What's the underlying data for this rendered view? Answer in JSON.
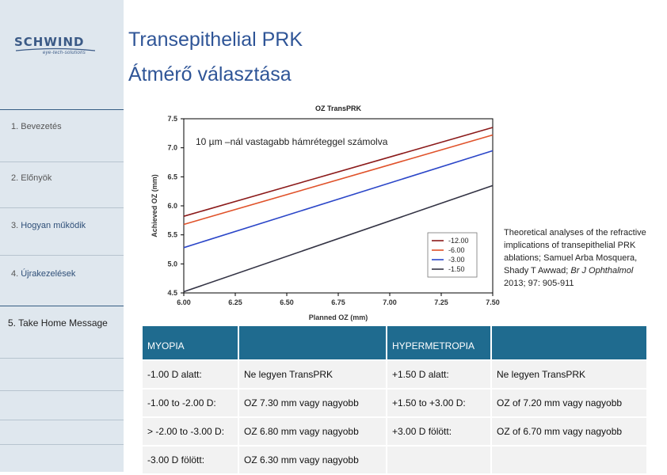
{
  "logo": {
    "brand": "SCHWIND",
    "tagline": "eye-tech-solutions"
  },
  "sidebar": {
    "items": [
      {
        "label": "1. Bevezetés",
        "prefix": "",
        "highlight": ""
      },
      {
        "label": "2. Előnyök",
        "prefix": "",
        "highlight": ""
      },
      {
        "label": "",
        "prefix": "3. ",
        "highlight": "Hogyan működik"
      },
      {
        "label": "",
        "prefix": "4. ",
        "highlight": "Újrakezelések"
      },
      {
        "label": "5. Take Home Message",
        "prefix": "",
        "highlight": ""
      }
    ]
  },
  "title": {
    "line1": "Transepithelial PRK",
    "line2": "Átmérő választása"
  },
  "chart_annotation": "10 µm –nál vastagabb hámréteggel számolva",
  "chart_data": {
    "type": "line",
    "title": "OZ TransPRK",
    "xlabel": "Planned OZ (mm)",
    "ylabel": "Achieved OZ (mm)",
    "xlim": [
      6.0,
      7.5
    ],
    "ylim": [
      4.5,
      7.5
    ],
    "xticks": [
      "6.00",
      "6.25",
      "6.50",
      "6.75",
      "7.00",
      "7.25",
      "7.50"
    ],
    "yticks": [
      "4.5",
      "5.0",
      "5.5",
      "6.0",
      "6.5",
      "7.0",
      "7.5"
    ],
    "legend_position": "bottom-right",
    "series": [
      {
        "name": "-12.00",
        "color": "#8b1a1a",
        "x": [
          6.0,
          7.5
        ],
        "y": [
          5.82,
          7.35
        ]
      },
      {
        "name": "-6.00",
        "color": "#e0522a",
        "x": [
          6.0,
          7.5
        ],
        "y": [
          5.68,
          7.22
        ]
      },
      {
        "name": "-3.00",
        "color": "#2b46c8",
        "x": [
          6.0,
          7.5
        ],
        "y": [
          5.28,
          6.95
        ]
      },
      {
        "name": "-1.50",
        "color": "#333344",
        "x": [
          6.0,
          7.5
        ],
        "y": [
          4.52,
          6.35
        ]
      }
    ]
  },
  "reference": {
    "text": "Theoretical analyses of the refractive implications of transepithelial PRK ablations; Samuel Arba Mosquera, Shady T Awwad;",
    "journal": "Br J Ophthalmol",
    "citation": " 2013; 97: 905-911"
  },
  "table": {
    "header": {
      "c1": "MYOPIA",
      "c2": "",
      "c3": "HYPERMETROPIA",
      "c4": ""
    },
    "rows": [
      {
        "c1": "-1.00 D alatt:",
        "c2": "Ne legyen TransPRK",
        "c3": "+1.50 D alatt:",
        "c4": "Ne legyen TransPRK"
      },
      {
        "c1": "-1.00 to -2.00 D:",
        "c2": "OZ 7.30 mm vagy nagyobb",
        "c3": "+1.50 to +3.00 D:",
        "c4": "OZ of 7.20 mm vagy nagyobb"
      },
      {
        "c1": "> -2.00 to -3.00 D:",
        "c2": "OZ 6.80 mm vagy nagyobb",
        "c3": "+3.00 D fölött:",
        "c4": "OZ of 6.70 mm vagy nagyobb"
      },
      {
        "c1": "-3.00 D fölött:",
        "c2": "OZ 6.30 mm vagy nagyobb",
        "c3": "",
        "c4": ""
      }
    ]
  }
}
